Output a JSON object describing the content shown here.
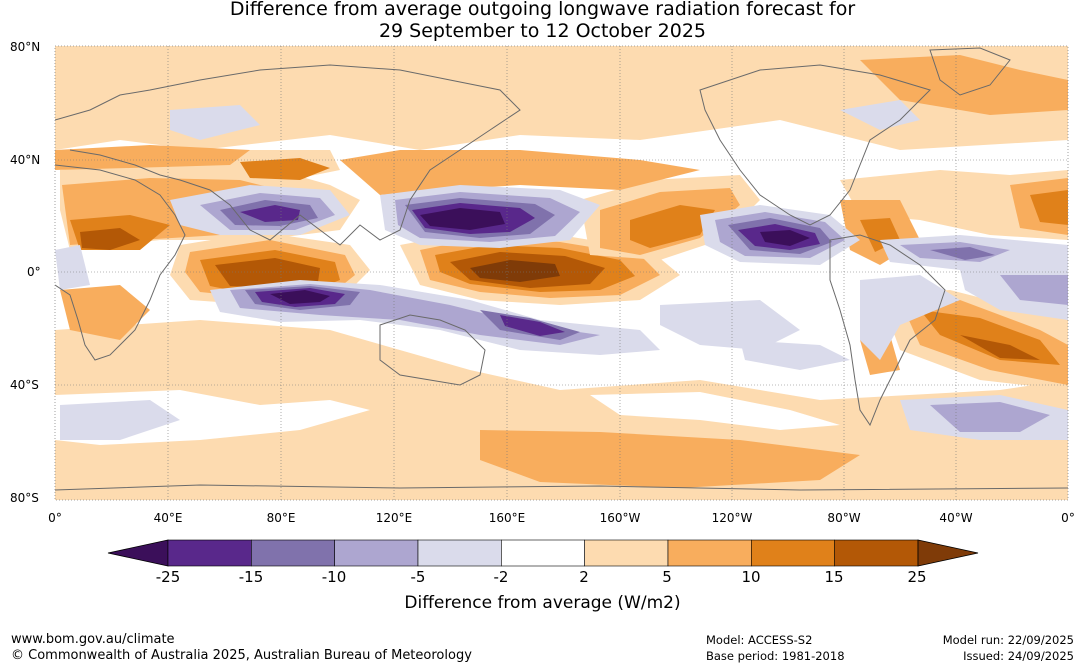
{
  "title": {
    "line1": "Difference from average outgoing longwave radiation forecast for",
    "line2": "29 September to 12 October 2025"
  },
  "map": {
    "lat_labels": [
      "80°N",
      "40°N",
      "0°",
      "40°S",
      "80°S"
    ],
    "lon_labels": [
      "0°",
      "40°E",
      "80°E",
      "120°E",
      "160°E",
      "160°W",
      "120°W",
      "80°W",
      "40°W",
      "0°"
    ]
  },
  "colorbar": {
    "ticks": [
      "-25",
      "-15",
      "-10",
      "-5",
      "-2",
      "2",
      "5",
      "10",
      "15",
      "25"
    ],
    "colors": [
      "#3b0f5a",
      "#59288b",
      "#8072ac",
      "#ada6d0",
      "#dadbeb",
      "#ffffff",
      "#fddbb0",
      "#f8ad5d",
      "#e0811a",
      "#b35806",
      "#7f3b08"
    ],
    "label": "Difference from average (W/m2)"
  },
  "footer": {
    "website": "www.bom.gov.au/climate",
    "copyright": "© Commonwealth of Australia 2025, Australian Bureau of Meteorology",
    "model": "Model: ACCESS-S2",
    "base_period": "Base period: 1981-2018",
    "model_run": "Model run: 22/09/2025",
    "issued": "Issued: 24/09/2025"
  }
}
